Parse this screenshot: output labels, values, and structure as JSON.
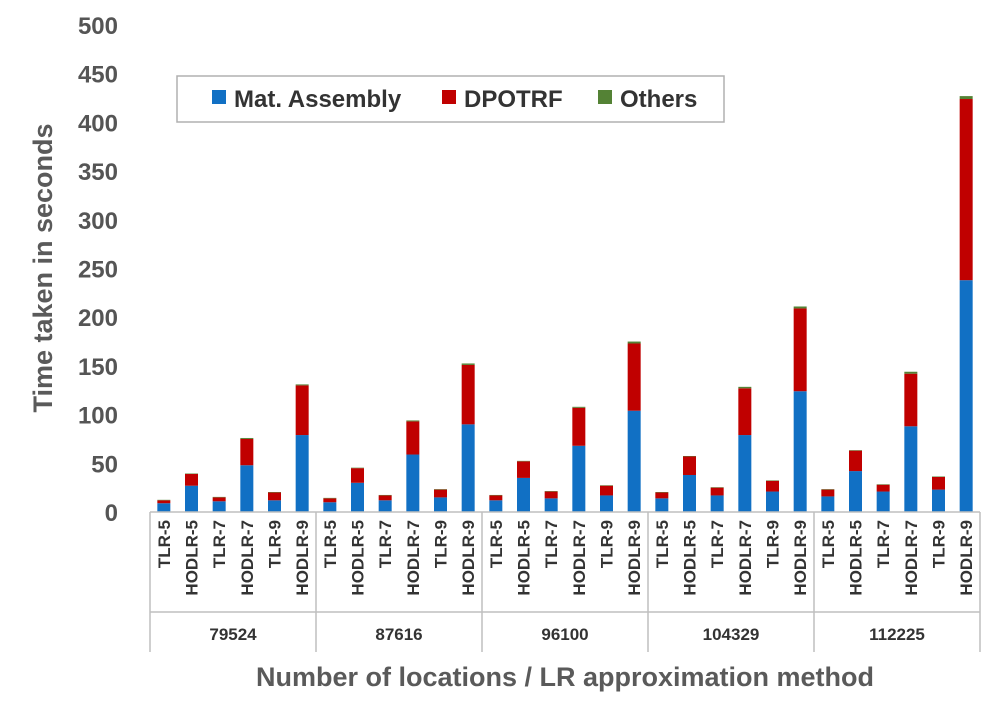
{
  "chart_data": {
    "type": "bar",
    "stacked": true,
    "ylabel": "Time taken in seconds",
    "xlabel": "Number of locations / LR approximation method",
    "ylim": [
      0,
      500
    ],
    "yticks": [
      0,
      50,
      100,
      150,
      200,
      250,
      300,
      350,
      400,
      450,
      500
    ],
    "grid": false,
    "legend_position": "top-left",
    "groups": [
      "79524",
      "87616",
      "96100",
      "104329",
      "112225"
    ],
    "methods": [
      "TLR-5",
      "HODLR-5",
      "TLR-7",
      "HODLR-7",
      "TLR-9",
      "HODLR-9"
    ],
    "series": [
      {
        "name": "Mat. Assembly",
        "color": "#1170c4",
        "values": [
          9,
          27,
          11,
          48,
          12,
          79,
          10,
          30,
          12,
          59,
          15,
          90,
          12,
          35,
          14,
          68,
          17,
          104,
          14,
          38,
          17,
          79,
          21,
          124,
          16,
          42,
          21,
          88,
          23,
          238
        ]
      },
      {
        "name": "DPOTRF",
        "color": "#c00000",
        "values": [
          3,
          12,
          4,
          27,
          8,
          51,
          4,
          15,
          5,
          34,
          8,
          61,
          5,
          17,
          7,
          39,
          10,
          69,
          6,
          19,
          8,
          48,
          11,
          85,
          7,
          21,
          7,
          54,
          13,
          186
        ]
      },
      {
        "name": "Others",
        "color": "#548235",
        "values": [
          0.5,
          0.5,
          0.5,
          1,
          0.5,
          1,
          0.5,
          0.5,
          0.5,
          1,
          0.5,
          1.5,
          0.5,
          0.5,
          0.5,
          1,
          0.5,
          2,
          0.5,
          0.5,
          0.5,
          1.5,
          0.5,
          2,
          0.5,
          0.5,
          0.5,
          2,
          0.5,
          3
        ]
      }
    ]
  }
}
